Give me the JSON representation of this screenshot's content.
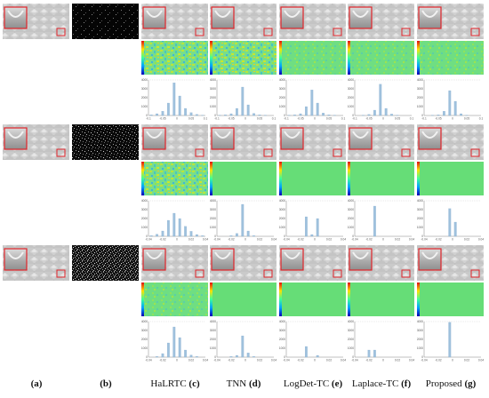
{
  "figure": {
    "column_labels": [
      "(a)",
      "(b)",
      "(c)",
      "(d)",
      "(e)",
      "(f)",
      "(g)"
    ],
    "method_names": [
      "",
      "",
      "HaLRTC",
      "TNN",
      "LogDet-TC",
      "Laplace-TC",
      "Proposed"
    ],
    "accent_color": "#e0242a",
    "histogram_color": "#9fc1dd",
    "rows": [
      {
        "histogram_y_ticks": [
          "4000",
          "3000",
          "2000",
          "1000",
          "0"
        ],
        "histogram_x_ticks": [
          "-0.1",
          "-0.05",
          "0",
          "0.05",
          "0.1"
        ],
        "noise_density": 0.05,
        "error_maps": [
          "textured-high",
          "textured-high",
          "textured-mid",
          "textured-mid",
          "textured-mid"
        ],
        "histograms": [
          [
            0.02,
            0.05,
            0.12,
            0.35,
            0.92,
            0.55,
            0.2,
            0.08,
            0.03,
            0.01
          ],
          [
            0.01,
            0.02,
            0.05,
            0.2,
            0.8,
            0.3,
            0.06,
            0.02,
            0.01,
            0.0
          ],
          [
            0.01,
            0.02,
            0.05,
            0.25,
            0.72,
            0.35,
            0.07,
            0.02,
            0.01,
            0.0
          ],
          [
            0.0,
            0.01,
            0.03,
            0.15,
            0.88,
            0.2,
            0.04,
            0.01,
            0.0,
            0.0
          ],
          [
            0.0,
            0.01,
            0.02,
            0.12,
            0.7,
            0.4,
            0.05,
            0.01,
            0.0,
            0.0
          ]
        ]
      },
      {
        "histogram_y_ticks": [
          "4000",
          "3000",
          "2000",
          "1000",
          "0"
        ],
        "histogram_x_ticks": [
          "-0.04",
          "-0.02",
          "0",
          "0.02",
          "0.04"
        ],
        "noise_density": 0.15,
        "error_maps": [
          "textured-high",
          "flat",
          "flat",
          "flat",
          "flat"
        ],
        "histograms": [
          [
            0.02,
            0.06,
            0.15,
            0.45,
            0.65,
            0.5,
            0.28,
            0.14,
            0.05,
            0.02
          ],
          [
            0.0,
            0.0,
            0.02,
            0.08,
            0.9,
            0.15,
            0.02,
            0.0,
            0.0,
            0.0
          ],
          [
            0.0,
            0.0,
            0.0,
            0.55,
            0.05,
            0.5,
            0.0,
            0.0,
            0.0,
            0.0
          ],
          [
            0.0,
            0.0,
            0.0,
            0.85,
            0.0,
            0.0,
            0.0,
            0.0,
            0.0,
            0.0
          ],
          [
            0.0,
            0.0,
            0.0,
            0.0,
            0.78,
            0.4,
            0.0,
            0.0,
            0.0,
            0.0
          ]
        ]
      },
      {
        "histogram_y_ticks": [
          "4000",
          "3000",
          "2000",
          "1000",
          "0"
        ],
        "histogram_x_ticks": [
          "-0.04",
          "-0.02",
          "0",
          "0.02",
          "0.04"
        ],
        "noise_density": 0.3,
        "error_maps": [
          "textured-mid",
          "flat",
          "flat",
          "flat",
          "flat"
        ],
        "histograms": [
          [
            0.0,
            0.02,
            0.1,
            0.4,
            0.85,
            0.55,
            0.2,
            0.06,
            0.02,
            0.0
          ],
          [
            0.0,
            0.0,
            0.02,
            0.05,
            0.6,
            0.12,
            0.02,
            0.0,
            0.0,
            0.0
          ],
          [
            0.0,
            0.0,
            0.0,
            0.3,
            0.0,
            0.05,
            0.0,
            0.0,
            0.0,
            0.0
          ],
          [
            0.0,
            0.0,
            0.2,
            0.2,
            0.0,
            0.0,
            0.0,
            0.0,
            0.0,
            0.0
          ],
          [
            0.0,
            0.0,
            0.0,
            0.0,
            0.98,
            0.0,
            0.0,
            0.0,
            0.0,
            0.0
          ]
        ]
      }
    ]
  }
}
